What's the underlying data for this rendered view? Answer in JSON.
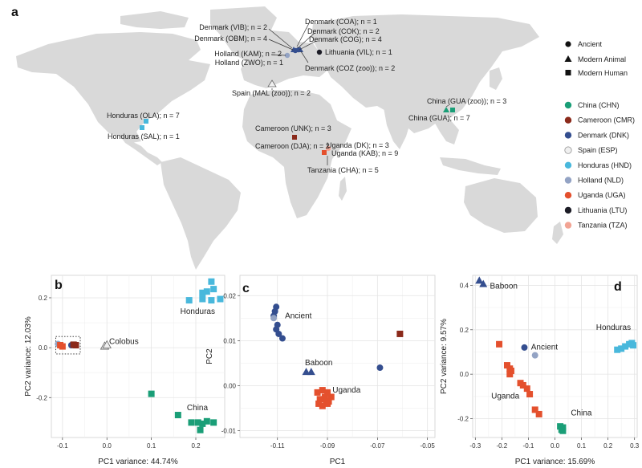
{
  "figure_panels": {
    "a": "a",
    "b": "b",
    "c": "c",
    "d": "d"
  },
  "map": {
    "land_color": "#d9d9d9",
    "shape_legend": [
      {
        "shape": "circle",
        "label": "Ancient"
      },
      {
        "shape": "triangle",
        "label": "Modern Animal"
      },
      {
        "shape": "square",
        "label": "Modern Human"
      }
    ],
    "color_legend": [
      {
        "code": "CHN",
        "label": "China (CHN)",
        "color": "#1a9e77"
      },
      {
        "code": "CMR",
        "label": "Cameroon (CMR)",
        "color": "#8b2a1b"
      },
      {
        "code": "DNK",
        "label": "Denmark (DNK)",
        "color": "#344e8f"
      },
      {
        "code": "ESP",
        "label": "Spain (ESP)",
        "color": "#f0f0f0"
      },
      {
        "code": "HND",
        "label": "Honduras (HND)",
        "color": "#49b8dc"
      },
      {
        "code": "NLD",
        "label": "Holland (NLD)",
        "color": "#93a3c4"
      },
      {
        "code": "UGA",
        "label": "Uganda (UGA)",
        "color": "#e4502d"
      },
      {
        "code": "LTU",
        "label": "Lithuania (LTU)",
        "color": "#1c1c26"
      },
      {
        "code": "TZA",
        "label": "Tanzania (TZA)",
        "color": "#f2a494"
      }
    ],
    "site_labels": [
      "Denmark (VIB); n = 2",
      "Denmark (OBM); n = 4",
      "Holland (KAM); n = 2",
      "Holland (ZWO); n = 1",
      "Denmark (COA); n = 1",
      "Denmark (COK); n = 2",
      "Denmark (COG); n = 4",
      "Lithuania (VIL); n = 1",
      "Denmark (COZ (zoo)); n = 2",
      "Spain (MAL (zoo)); n = 2",
      "Honduras (OLA); n = 7",
      "Honduras (SAL); n = 1",
      "Cameroon (UNK); n = 3",
      "Cameroon (DJA); n = 2",
      "Uganda (DK); n = 3",
      "Uganda (KAB); n = 9",
      "Tanzania (CHA); n = 5",
      "China (GUA (zoo)); n = 3",
      "China (GUA); n = 7"
    ]
  },
  "chart_data": [
    {
      "panel": "b",
      "type": "scatter",
      "xlabel": "PC1 variance: 44.74%",
      "ylabel": "PC2 variance: 12.03%",
      "xlim": [
        -0.125,
        0.265
      ],
      "ylim": [
        -0.36,
        0.29
      ],
      "xticks": [
        {
          "v": -0.1,
          "t": "-0.1"
        },
        {
          "v": 0.0,
          "t": "0.0"
        },
        {
          "v": 0.1,
          "t": "0.1"
        },
        {
          "v": 0.2,
          "t": "0.2"
        }
      ],
      "yticks": [
        {
          "v": -0.2,
          "t": "-0.2"
        },
        {
          "v": 0.0,
          "t": "0.0"
        },
        {
          "v": 0.2,
          "t": "0.2"
        }
      ],
      "annotations": [
        {
          "text": "Colobus",
          "x": 0.005,
          "y": 0.015
        },
        {
          "text": "Honduras",
          "x": 0.165,
          "y": 0.135
        },
        {
          "text": "China",
          "x": 0.18,
          "y": -0.25
        }
      ],
      "highlight_box": {
        "x0": -0.115,
        "x1": -0.06,
        "y0": -0.025,
        "y1": 0.045
      },
      "points": [
        {
          "x": -0.11,
          "y": 0.015,
          "shape": "circle",
          "color": "#93a3c4"
        },
        {
          "x": -0.105,
          "y": 0.01,
          "shape": "square",
          "color": "#e4502d"
        },
        {
          "x": -0.1,
          "y": 0.005,
          "shape": "square",
          "color": "#e4502d"
        },
        {
          "x": -0.08,
          "y": 0.01,
          "shape": "circle",
          "color": "#344e8f"
        },
        {
          "x": -0.075,
          "y": 0.012,
          "shape": "square",
          "color": "#8b2a1b"
        },
        {
          "x": -0.07,
          "y": 0.01,
          "shape": "square",
          "color": "#8b2a1b"
        },
        {
          "x": -0.005,
          "y": 0.005,
          "shape": "triangle",
          "color": "#f0f0f0"
        },
        {
          "x": 0.0,
          "y": 0.01,
          "shape": "triangle",
          "color": "#f0f0f0"
        },
        {
          "x": 0.235,
          "y": 0.265,
          "shape": "square",
          "color": "#49b8dc"
        },
        {
          "x": 0.215,
          "y": 0.22,
          "shape": "square",
          "color": "#49b8dc"
        },
        {
          "x": 0.225,
          "y": 0.225,
          "shape": "square",
          "color": "#49b8dc"
        },
        {
          "x": 0.24,
          "y": 0.235,
          "shape": "square",
          "color": "#49b8dc"
        },
        {
          "x": 0.185,
          "y": 0.19,
          "shape": "square",
          "color": "#49b8dc"
        },
        {
          "x": 0.215,
          "y": 0.195,
          "shape": "square",
          "color": "#49b8dc"
        },
        {
          "x": 0.235,
          "y": 0.19,
          "shape": "square",
          "color": "#49b8dc"
        },
        {
          "x": 0.255,
          "y": 0.195,
          "shape": "square",
          "color": "#49b8dc"
        },
        {
          "x": 0.1,
          "y": -0.185,
          "shape": "square",
          "color": "#1a9e77"
        },
        {
          "x": 0.16,
          "y": -0.27,
          "shape": "square",
          "color": "#1a9e77"
        },
        {
          "x": 0.19,
          "y": -0.3,
          "shape": "square",
          "color": "#1a9e77"
        },
        {
          "x": 0.205,
          "y": -0.3,
          "shape": "square",
          "color": "#1a9e77"
        },
        {
          "x": 0.225,
          "y": -0.295,
          "shape": "square",
          "color": "#1a9e77"
        },
        {
          "x": 0.215,
          "y": -0.305,
          "shape": "square",
          "color": "#1a9e77"
        },
        {
          "x": 0.24,
          "y": -0.3,
          "shape": "square",
          "color": "#1a9e77"
        },
        {
          "x": 0.21,
          "y": -0.33,
          "shape": "square",
          "color": "#1a9e77"
        }
      ]
    },
    {
      "panel": "c",
      "type": "scatter",
      "xlabel": "PC1",
      "ylabel": "PC2",
      "xlim": [
        -0.125,
        -0.047
      ],
      "ylim": [
        -0.0115,
        0.0245
      ],
      "xticks": [
        {
          "v": -0.11,
          "t": "-0.11"
        },
        {
          "v": -0.09,
          "t": "-0.09"
        },
        {
          "v": -0.07,
          "t": "-0.07"
        },
        {
          "v": -0.05,
          "t": "-0.05"
        }
      ],
      "yticks": [
        {
          "v": -0.01,
          "t": "-0.01"
        },
        {
          "v": 0.0,
          "t": "0.00"
        },
        {
          "v": 0.01,
          "t": "0.01"
        },
        {
          "v": 0.02,
          "t": "0.02"
        }
      ],
      "annotations": [
        {
          "text": "Ancient",
          "x": -0.107,
          "y": 0.015
        },
        {
          "text": "Baboon",
          "x": -0.099,
          "y": 0.0045
        },
        {
          "text": "Uganda",
          "x": -0.088,
          "y": -0.0015
        }
      ],
      "points": [
        {
          "x": -0.1105,
          "y": 0.0175,
          "shape": "circle",
          "color": "#344e8f"
        },
        {
          "x": -0.111,
          "y": 0.0165,
          "shape": "circle",
          "color": "#344e8f"
        },
        {
          "x": -0.1115,
          "y": 0.0155,
          "shape": "circle",
          "color": "#344e8f"
        },
        {
          "x": -0.1115,
          "y": 0.015,
          "shape": "circle",
          "color": "#93a3c4"
        },
        {
          "x": -0.11,
          "y": 0.0135,
          "shape": "circle",
          "color": "#344e8f"
        },
        {
          "x": -0.1105,
          "y": 0.0125,
          "shape": "circle",
          "color": "#344e8f"
        },
        {
          "x": -0.1095,
          "y": 0.0115,
          "shape": "circle",
          "color": "#344e8f"
        },
        {
          "x": -0.108,
          "y": 0.0105,
          "shape": "circle",
          "color": "#344e8f"
        },
        {
          "x": -0.069,
          "y": 0.004,
          "shape": "circle",
          "color": "#344e8f"
        },
        {
          "x": -0.061,
          "y": 0.0115,
          "shape": "square",
          "color": "#8b2a1b"
        },
        {
          "x": -0.0985,
          "y": 0.003,
          "shape": "triangle",
          "color": "#344e8f"
        },
        {
          "x": -0.0965,
          "y": 0.003,
          "shape": "triangle",
          "color": "#344e8f"
        },
        {
          "x": -0.094,
          "y": -0.0015,
          "shape": "square",
          "color": "#e4502d"
        },
        {
          "x": -0.092,
          "y": -0.001,
          "shape": "square",
          "color": "#e4502d"
        },
        {
          "x": -0.09,
          "y": -0.0015,
          "shape": "square",
          "color": "#e4502d"
        },
        {
          "x": -0.093,
          "y": -0.003,
          "shape": "square",
          "color": "#e4502d"
        },
        {
          "x": -0.091,
          "y": -0.0025,
          "shape": "square",
          "color": "#e4502d"
        },
        {
          "x": -0.0895,
          "y": -0.0035,
          "shape": "square",
          "color": "#e4502d"
        },
        {
          "x": -0.092,
          "y": -0.0045,
          "shape": "square",
          "color": "#e4502d"
        },
        {
          "x": -0.09,
          "y": -0.004,
          "shape": "square",
          "color": "#e4502d"
        },
        {
          "x": -0.0935,
          "y": -0.004,
          "shape": "square",
          "color": "#e4502d"
        },
        {
          "x": -0.0885,
          "y": -0.0025,
          "shape": "square",
          "color": "#e4502d"
        },
        {
          "x": -0.0905,
          "y": -0.0035,
          "shape": "square",
          "color": "#e4502d"
        }
      ]
    },
    {
      "panel": "d",
      "type": "scatter",
      "xlabel": "PC1 variance: 15.69%",
      "ylabel": "PC2 variance: 9.57%",
      "xlim": [
        -0.31,
        0.31
      ],
      "ylim": [
        -0.285,
        0.445
      ],
      "xticks": [
        {
          "v": -0.3,
          "t": "-0.3"
        },
        {
          "v": -0.2,
          "t": "-0.2"
        },
        {
          "v": -0.1,
          "t": "-0.1"
        },
        {
          "v": 0.0,
          "t": "0.0"
        },
        {
          "v": 0.1,
          "t": "0.1"
        },
        {
          "v": 0.2,
          "t": "0.2"
        },
        {
          "v": 0.3,
          "t": "0.3"
        }
      ],
      "yticks": [
        {
          "v": -0.2,
          "t": "-0.2"
        },
        {
          "v": 0.0,
          "t": "0.0"
        },
        {
          "v": 0.2,
          "t": "0.2"
        },
        {
          "v": 0.4,
          "t": "0.4"
        }
      ],
      "annotations": [
        {
          "text": "Baboon",
          "x": -0.245,
          "y": 0.385
        },
        {
          "text": "Ancient",
          "x": -0.09,
          "y": 0.11
        },
        {
          "text": "Honduras",
          "x": 0.155,
          "y": 0.2
        },
        {
          "text": "Uganda",
          "x": -0.24,
          "y": -0.11
        },
        {
          "text": "China",
          "x": 0.06,
          "y": -0.185
        }
      ],
      "points": [
        {
          "x": -0.285,
          "y": 0.42,
          "shape": "triangle",
          "color": "#344e8f"
        },
        {
          "x": -0.27,
          "y": 0.405,
          "shape": "triangle",
          "color": "#344e8f"
        },
        {
          "x": -0.115,
          "y": 0.12,
          "shape": "circle",
          "color": "#344e8f"
        },
        {
          "x": -0.075,
          "y": 0.085,
          "shape": "circle",
          "color": "#93a3c4"
        },
        {
          "x": -0.21,
          "y": 0.135,
          "shape": "square",
          "color": "#e4502d"
        },
        {
          "x": -0.18,
          "y": 0.04,
          "shape": "square",
          "color": "#e4502d"
        },
        {
          "x": -0.17,
          "y": 0.025,
          "shape": "square",
          "color": "#e4502d"
        },
        {
          "x": -0.165,
          "y": 0.015,
          "shape": "square",
          "color": "#e4502d"
        },
        {
          "x": -0.17,
          "y": 0.0,
          "shape": "square",
          "color": "#e4502d"
        },
        {
          "x": -0.13,
          "y": -0.04,
          "shape": "square",
          "color": "#e4502d"
        },
        {
          "x": -0.12,
          "y": -0.05,
          "shape": "square",
          "color": "#e4502d"
        },
        {
          "x": -0.105,
          "y": -0.065,
          "shape": "square",
          "color": "#e4502d"
        },
        {
          "x": -0.095,
          "y": -0.09,
          "shape": "square",
          "color": "#e4502d"
        },
        {
          "x": -0.075,
          "y": -0.16,
          "shape": "square",
          "color": "#e4502d"
        },
        {
          "x": -0.06,
          "y": -0.18,
          "shape": "square",
          "color": "#e4502d"
        },
        {
          "x": 0.02,
          "y": -0.235,
          "shape": "square",
          "color": "#1a9e77"
        },
        {
          "x": 0.03,
          "y": -0.24,
          "shape": "square",
          "color": "#1a9e77"
        },
        {
          "x": 0.025,
          "y": -0.25,
          "shape": "square",
          "color": "#1a9e77"
        },
        {
          "x": 0.03,
          "y": -0.255,
          "shape": "square",
          "color": "#1a9e77"
        },
        {
          "x": 0.235,
          "y": 0.11,
          "shape": "square",
          "color": "#49b8dc"
        },
        {
          "x": 0.25,
          "y": 0.115,
          "shape": "square",
          "color": "#49b8dc"
        },
        {
          "x": 0.265,
          "y": 0.125,
          "shape": "square",
          "color": "#49b8dc"
        },
        {
          "x": 0.28,
          "y": 0.135,
          "shape": "square",
          "color": "#49b8dc"
        },
        {
          "x": 0.29,
          "y": 0.14,
          "shape": "square",
          "color": "#49b8dc"
        },
        {
          "x": 0.295,
          "y": 0.13,
          "shape": "square",
          "color": "#49b8dc"
        }
      ]
    }
  ]
}
